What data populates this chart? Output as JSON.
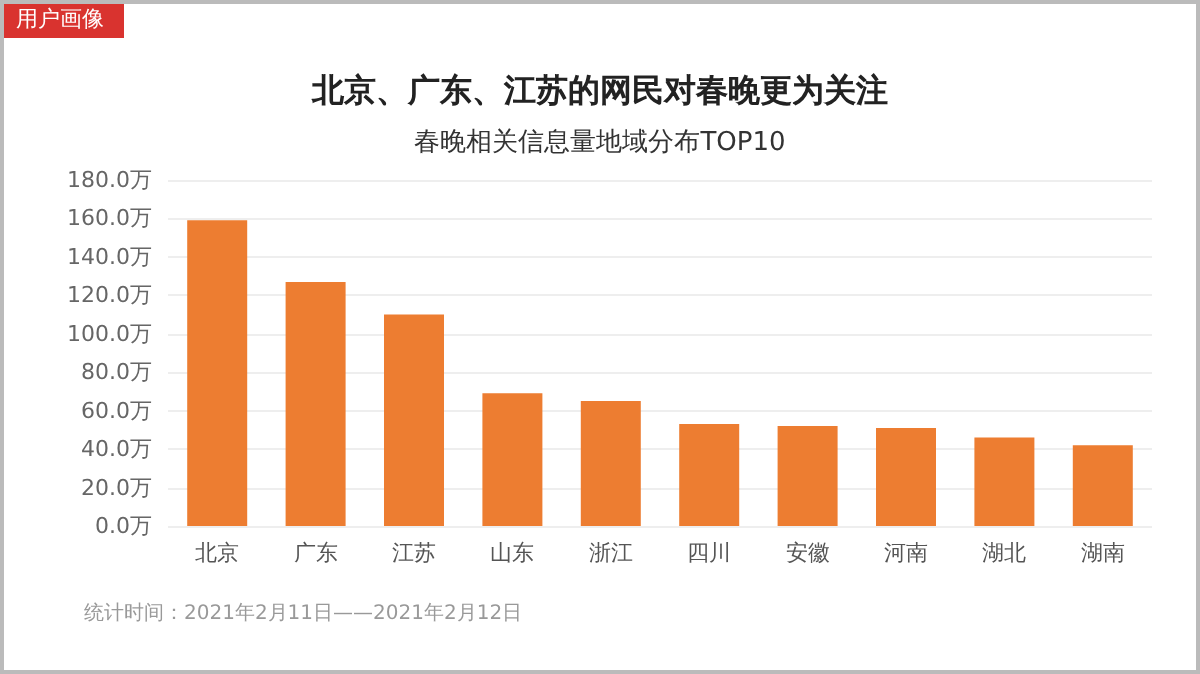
{
  "chart_data": {
    "type": "bar",
    "title": "北京、广东、江苏的网民对春晚更为关注",
    "subtitle": "春晚相关信息量地域分布TOP10",
    "annotations": [
      "用户画像",
      "统计时间：2021年2月11日——2021年2月12日"
    ],
    "categories": [
      "北京",
      "广东",
      "江苏",
      "山东",
      "浙江",
      "四川",
      "安徽",
      "河南",
      "湖北",
      "湖南"
    ],
    "values": [
      159,
      127,
      110,
      69,
      65,
      53,
      52,
      51,
      46,
      42
    ],
    "color": "#ed7d31",
    "ylim": [
      0,
      180
    ],
    "yticks": [
      {
        "value": 0,
        "label": "0.0万"
      },
      {
        "value": 20,
        "label": "20.0万"
      },
      {
        "value": 40,
        "label": "40.0万"
      },
      {
        "value": 60,
        "label": "60.0万"
      },
      {
        "value": 80,
        "label": "80.0万"
      },
      {
        "value": 100,
        "label": "100.0万"
      },
      {
        "value": 120,
        "label": "120.0万"
      },
      {
        "value": 140,
        "label": "140.0万"
      },
      {
        "value": 160,
        "label": "160.0万"
      },
      {
        "value": 180,
        "label": "180.0万"
      }
    ],
    "grid": "y"
  }
}
